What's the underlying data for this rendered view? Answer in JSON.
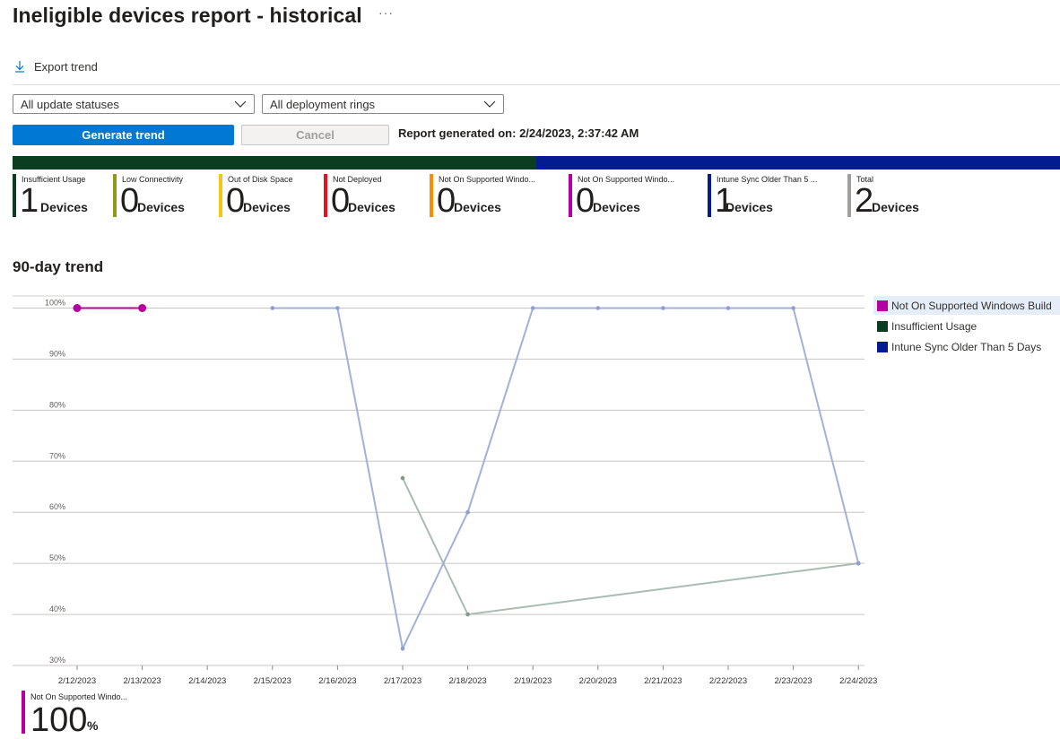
{
  "page": {
    "title": "Ineligible devices report - historical",
    "more": "···"
  },
  "toolbar": {
    "export_label": "Export trend",
    "export_icon": "download-icon"
  },
  "filters": {
    "update_status": {
      "value": "All update statuses"
    },
    "deployment_rings": {
      "value": "All deployment rings"
    }
  },
  "actions": {
    "generate_label": "Generate trend",
    "cancel_label": "Cancel"
  },
  "report": {
    "generated": "Report generated on: 2/24/2023, 2:37:42 AM"
  },
  "summary_bar": [
    {
      "name": "Insufficient Usage",
      "count": 1,
      "color": "#0b3d20"
    },
    {
      "name": "Intune Sync Older Than 5 Days",
      "count": 1,
      "color": "#041c8f"
    }
  ],
  "tiles": [
    {
      "label": "Insufficient Usage",
      "count": "1",
      "unit": "Devices",
      "color": "#0b3d20"
    },
    {
      "label": "Low Connectivity",
      "count": "0",
      "unit": "Devices",
      "color": "#8e9a1a"
    },
    {
      "label": "Out of Disk Space",
      "count": "0",
      "unit": "Devices",
      "color": "#f2c811"
    },
    {
      "label": "Not Deployed",
      "count": "0",
      "unit": "Devices",
      "color": "#e81123"
    },
    {
      "label": "Not On Supported Windo...",
      "count": "0",
      "unit": "Devices",
      "color": "#ff8c00"
    },
    {
      "label": "Not On Supported Windo...",
      "count": "0",
      "unit": "Devices",
      "color": "#b4009e"
    },
    {
      "label": "Intune Sync Older Than 5 ...",
      "count": "1",
      "unit": "Devices",
      "color": "#041c8f"
    },
    {
      "label": "Total",
      "count": "2",
      "unit": "Devices",
      "color": "#a19f9d"
    }
  ],
  "trend": {
    "title": "90-day trend",
    "legend": [
      {
        "label": "Not On Supported Windows Build",
        "color": "#b4009e"
      },
      {
        "label": "Insufficient Usage",
        "color": "#0b3d20"
      },
      {
        "label": "Intune Sync Older Than 5 Days",
        "color": "#041c8f"
      }
    ],
    "kpi": {
      "label": "Not On Supported Windo...",
      "value": "100",
      "unit": "%"
    }
  },
  "chart_data": {
    "type": "line",
    "title": "90-day trend",
    "x": [
      "2/12/2023",
      "2/13/2023",
      "2/14/2023",
      "2/15/2023",
      "2/16/2023",
      "2/17/2023",
      "2/18/2023",
      "2/19/2023",
      "2/20/2023",
      "2/21/2023",
      "2/22/2023",
      "2/23/2023",
      "2/24/2023"
    ],
    "y_ticks": [
      "100%",
      "90%",
      "80%",
      "70%",
      "60%",
      "50%",
      "40%",
      "30%"
    ],
    "ylim": [
      30,
      100
    ],
    "y_unit": "%",
    "grid": true,
    "legend_position": "right",
    "series": [
      {
        "name": "Not On Supported Windows Build",
        "color": "#b4009e",
        "highlight": true,
        "values": [
          100,
          100,
          null,
          null,
          null,
          null,
          null,
          null,
          null,
          null,
          null,
          null,
          null
        ]
      },
      {
        "name": "Insufficient Usage",
        "color": "#0b3d20",
        "highlight": false,
        "values": [
          null,
          null,
          null,
          null,
          null,
          66.7,
          40,
          null,
          null,
          null,
          null,
          null,
          50
        ]
      },
      {
        "name": "Intune Sync Older Than 5 Days",
        "color": "#041c8f",
        "highlight": false,
        "values": [
          null,
          null,
          null,
          100,
          100,
          33.3,
          60,
          100,
          100,
          100,
          100,
          100,
          50
        ]
      }
    ]
  }
}
